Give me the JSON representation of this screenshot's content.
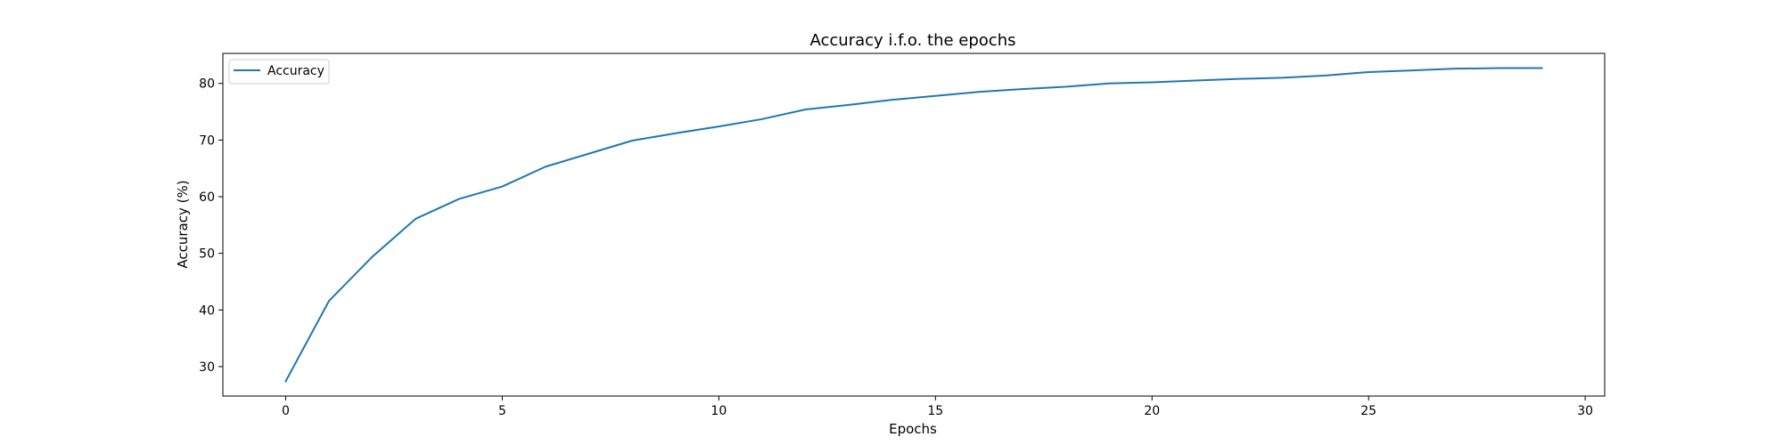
{
  "chart_data": {
    "type": "line",
    "title": "Accuracy i.f.o. the epochs",
    "xlabel": "Epochs",
    "ylabel": "Accuracy (%)",
    "xlim": [
      -1.45,
      30.45
    ],
    "ylim": [
      24.8,
      85.3
    ],
    "x_ticks": [
      0,
      5,
      10,
      15,
      20,
      25,
      30
    ],
    "y_ticks": [
      30,
      40,
      50,
      60,
      70,
      80
    ],
    "grid": false,
    "legend_position": "upper-left",
    "series": [
      {
        "name": "Accuracy",
        "color": "#1f77b4",
        "x": [
          0,
          1,
          2,
          3,
          4,
          5,
          6,
          7,
          8,
          9,
          10,
          11,
          12,
          13,
          14,
          15,
          16,
          17,
          18,
          19,
          20,
          21,
          22,
          23,
          24,
          25,
          26,
          27,
          28,
          29
        ],
        "y": [
          27.4,
          41.6,
          49.4,
          56.1,
          59.6,
          61.8,
          65.3,
          67.6,
          69.9,
          71.2,
          72.4,
          73.7,
          75.4,
          76.2,
          77.1,
          77.8,
          78.5,
          79.0,
          79.4,
          80.0,
          80.2,
          80.5,
          80.8,
          81.0,
          81.4,
          82.0,
          82.3,
          82.6,
          82.7,
          82.7
        ]
      }
    ]
  }
}
